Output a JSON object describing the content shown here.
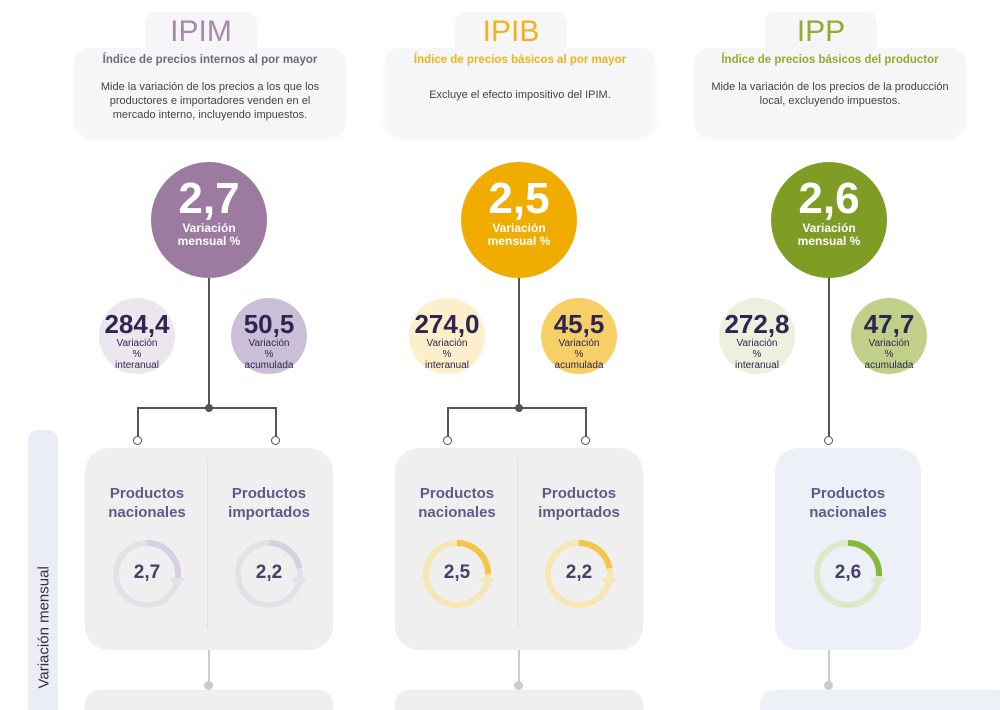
{
  "side_label": "Variación mensual",
  "columns": [
    {
      "id": "ipim",
      "title": "IPIM",
      "subtitle": "Índice de precios internos al por mayor",
      "description": "Mide la variación de los precios a los que los productores e importadores venden en el mercado interno, incluyendo impuestos.",
      "main_value": "2,7",
      "main_label": "Variación mensual %",
      "interanual": "284,4",
      "interanual_label": "Variación % interanual",
      "acumulada": "50,5",
      "acumulada_label": "Variación % acumulada",
      "colors": {
        "main": "#9d7aa0",
        "title": "#a58aab",
        "subtitle": "#6e6a78",
        "light": "#ece6ef",
        "mid": "#cbbfd7",
        "track": "#e4e0e8",
        "arc": "#d8cfe0",
        "panel": "#efeff0"
      },
      "products": [
        {
          "label": "Productos nacionales",
          "value": "2,7"
        },
        {
          "label": "Productos importados",
          "value": "2,2"
        }
      ]
    },
    {
      "id": "ipib",
      "title": "IPIB",
      "subtitle": "Índice de precios básicos al por mayor",
      "description": "Excluye el efecto impositivo del IPIM.",
      "main_value": "2,5",
      "main_label": "Variación mensual %",
      "interanual": "274,0",
      "interanual_label": "Variación % interanual",
      "acumulada": "45,5",
      "acumulada_label": "Variación % acumulada",
      "colors": {
        "main": "#f0ad00",
        "title": "#f0b41a",
        "subtitle": "#f0b41a",
        "light": "#fcefc9",
        "mid": "#f6d067",
        "track": "#f6e6b4",
        "arc": "#f3c64a",
        "panel": "#efeff0"
      },
      "products": [
        {
          "label": "Productos nacionales",
          "value": "2,5"
        },
        {
          "label": "Productos importados",
          "value": "2,2"
        }
      ]
    },
    {
      "id": "ipp",
      "title": "IPP",
      "subtitle": "Índice de precios básicos del productor",
      "description": "Mide la variación de los precios de la producción local, excluyendo impuestos.",
      "main_value": "2,6",
      "main_label": "Variación mensual %",
      "interanual": "272,8",
      "interanual_label": "Variación % interanual",
      "acumulada": "47,7",
      "acumulada_label": "Variación % acumulada",
      "colors": {
        "main": "#7f9c25",
        "title": "#8fae2e",
        "subtitle": "#8fae2e",
        "light": "#ebf0df",
        "mid": "#c0d088",
        "track": "#dde8c6",
        "arc": "#86b83a",
        "panel": "#eef0f8"
      },
      "products": [
        {
          "label": "Productos nacionales",
          "value": "2,6"
        }
      ]
    }
  ]
}
